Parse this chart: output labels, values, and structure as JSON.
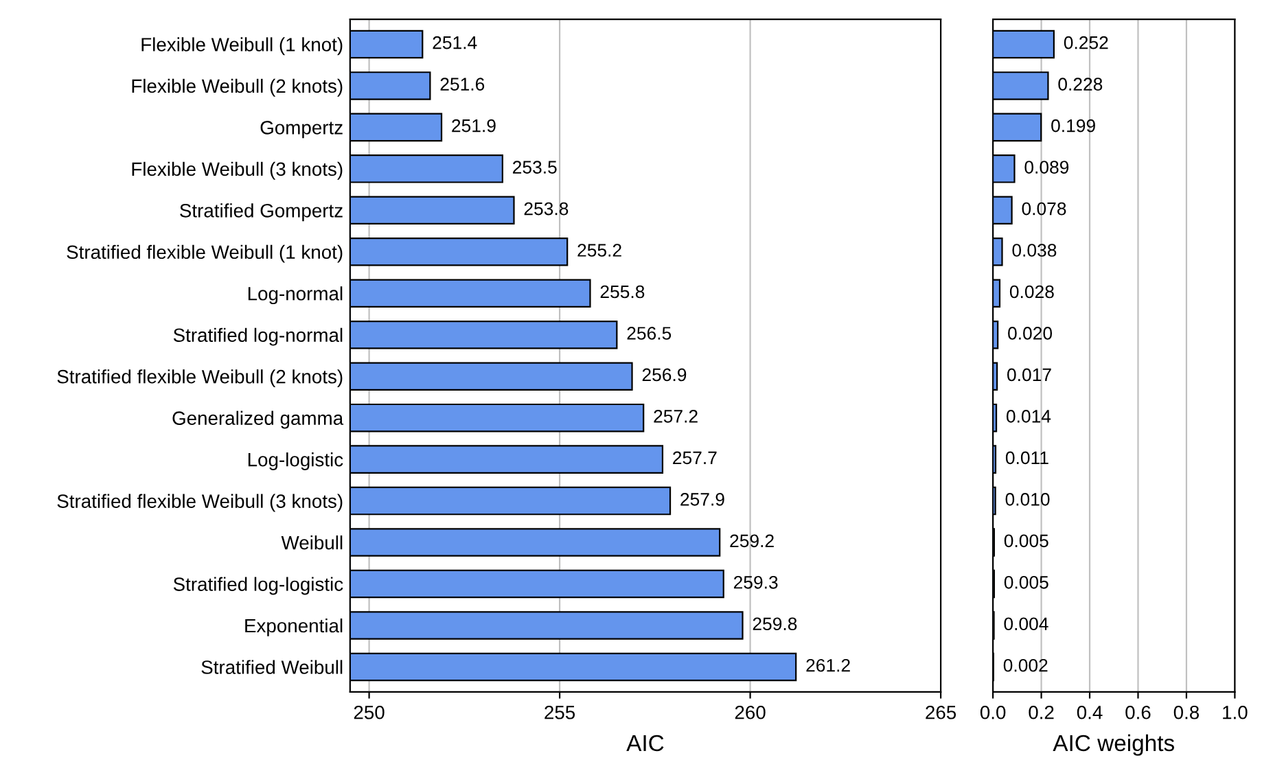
{
  "chart_data": [
    {
      "type": "bar",
      "orientation": "horizontal",
      "xlabel": "AIC",
      "categories": [
        "Flexible Weibull (1 knot)",
        "Flexible Weibull (2 knots)",
        "Gompertz",
        "Flexible Weibull (3 knots)",
        "Stratified Gompertz",
        "Stratified flexible Weibull (1 knot)",
        "Log-normal",
        "Stratified log-normal",
        "Stratified flexible Weibull (2 knots)",
        "Generalized gamma",
        "Log-logistic",
        "Stratified flexible Weibull (3 knots)",
        "Weibull",
        "Stratified log-logistic",
        "Exponential",
        "Stratified Weibull"
      ],
      "values": [
        251.4,
        251.6,
        251.9,
        253.5,
        253.8,
        255.2,
        255.8,
        256.5,
        256.9,
        257.2,
        257.7,
        257.9,
        259.2,
        259.3,
        259.8,
        261.2
      ],
      "color": "#6495ed",
      "xlim": [
        249.5,
        265
      ],
      "xticks": [
        250,
        255,
        260,
        265
      ],
      "grid": "x",
      "data_labels": true
    },
    {
      "type": "bar",
      "orientation": "horizontal",
      "xlabel": "AIC weights",
      "categories": [
        null,
        null,
        null,
        null,
        null,
        null,
        null,
        null,
        null,
        null,
        null,
        null,
        null,
        null,
        null,
        null
      ],
      "values": [
        0.252,
        0.228,
        0.199,
        0.089,
        0.078,
        0.038,
        0.028,
        0.02,
        0.017,
        0.014,
        0.011,
        0.01,
        0.005,
        0.005,
        0.004,
        0.002
      ],
      "value_labels": [
        "0.252",
        "0.228",
        "0.199",
        "0.089",
        "0.078",
        "0.038",
        "0.028",
        "0.020",
        "0.017",
        "0.014",
        "0.011",
        "0.010",
        "0.005",
        "0.005",
        "0.004",
        "0.002"
      ],
      "color": "#6495ed",
      "xlim": [
        0.0,
        1.0
      ],
      "xticks": [
        {
          "value": 0.0,
          "label": "0.0"
        },
        {
          "value": 0.2,
          "label": "0.2"
        },
        {
          "value": 0.4,
          "label": "0.4"
        },
        {
          "value": 0.6,
          "label": "0.6"
        },
        {
          "value": 0.8,
          "label": "0.8"
        },
        {
          "value": 1.0,
          "label": "1.0"
        }
      ],
      "grid": "x",
      "tick_labels": "x"
    }
  ]
}
